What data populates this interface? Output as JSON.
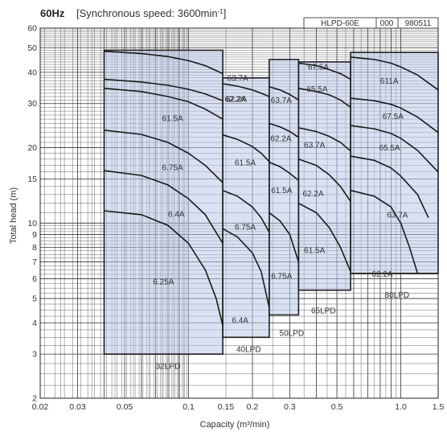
{
  "header": {
    "freq": "60Hz",
    "speed_text": "[Synchronous speed: 3600min",
    "speed_exp": "-1",
    "speed_close": "]"
  },
  "model_box": {
    "model": "HLPD-60E",
    "code1": "000",
    "code2": "980511"
  },
  "chart_data": {
    "type": "line",
    "xlabel": "Capacity (m³/min)",
    "ylabel": "Total head  (m)",
    "xscale": "log",
    "yscale": "log",
    "xlim": [
      0.02,
      1.5
    ],
    "ylim": [
      2,
      60
    ],
    "grid": true,
    "xticks": [
      {
        "v": 0.02,
        "t": "0.02"
      },
      {
        "v": 0.03,
        "t": "0.03"
      },
      {
        "v": 0.05,
        "t": "0.05"
      },
      {
        "v": 0.1,
        "t": "0.1"
      },
      {
        "v": 0.15,
        "t": "0.15"
      },
      {
        "v": 0.2,
        "t": "0.2"
      },
      {
        "v": 0.3,
        "t": "0.3"
      },
      {
        "v": 0.5,
        "t": "0.5"
      },
      {
        "v": 1.0,
        "t": "1.0"
      },
      {
        "v": 1.5,
        "t": "1.5"
      }
    ],
    "yticks": [
      {
        "v": 2,
        "t": "2"
      },
      {
        "v": 3,
        "t": "3"
      },
      {
        "v": 4,
        "t": "4"
      },
      {
        "v": 5,
        "t": "5"
      },
      {
        "v": 6,
        "t": "6"
      },
      {
        "v": 7,
        "t": "7"
      },
      {
        "v": 8,
        "t": "8"
      },
      {
        "v": 9,
        "t": "9"
      },
      {
        "v": 10,
        "t": "10"
      },
      {
        "v": 15,
        "t": "15"
      },
      {
        "v": 20,
        "t": "20"
      },
      {
        "v": 30,
        "t": "30"
      },
      {
        "v": 40,
        "t": "40"
      },
      {
        "v": 50,
        "t": "50"
      },
      {
        "v": 60,
        "t": "60"
      }
    ],
    "models": [
      {
        "name": "32LPD",
        "region": [
          [
            0.04,
            3.0
          ],
          [
            0.04,
            49
          ],
          [
            0.145,
            49
          ],
          [
            0.145,
            3.0
          ]
        ],
        "label_at": [
          0.07,
          2.7
        ],
        "curves": [
          {
            "name": "6.25A",
            "points": [
              [
                0.04,
                11.2
              ],
              [
                0.06,
                10.8
              ],
              [
                0.08,
                9.8
              ],
              [
                0.1,
                8.3
              ],
              [
                0.12,
                6.5
              ],
              [
                0.135,
                5.0
              ],
              [
                0.145,
                3.9
              ]
            ],
            "label_at": [
              0.068,
              5.7
            ]
          },
          {
            "name": "6.4A",
            "points": [
              [
                0.04,
                16.2
              ],
              [
                0.06,
                15.5
              ],
              [
                0.08,
                14.2
              ],
              [
                0.1,
                12.5
              ],
              [
                0.12,
                10.8
              ],
              [
                0.145,
                8.3
              ]
            ],
            "label_at": [
              0.08,
              10.6
            ]
          },
          {
            "name": "6.75A",
            "points": [
              [
                0.04,
                23.5
              ],
              [
                0.06,
                22.6
              ],
              [
                0.08,
                21.0
              ],
              [
                0.1,
                19.0
              ],
              [
                0.12,
                17.0
              ],
              [
                0.145,
                14.5
              ]
            ],
            "label_at": [
              0.075,
              16.3
            ]
          },
          {
            "name": "61.5A",
            "points": [
              [
                0.04,
                34.5
              ],
              [
                0.06,
                33.5
              ],
              [
                0.08,
                32.0
              ],
              [
                0.1,
                30.5
              ],
              [
                0.12,
                28.5
              ],
              [
                0.145,
                26.0
              ]
            ],
            "label_at": [
              0.075,
              25.5
            ]
          },
          {
            "name": "62.2A",
            "points": [
              [
                0.04,
                37.5
              ],
              [
                0.06,
                36.6
              ],
              [
                0.08,
                35.5
              ],
              [
                0.1,
                34.2
              ],
              [
                0.12,
                32.8
              ],
              [
                0.145,
                30.8
              ]
            ],
            "label_at": [
              0.148,
              30.5
            ]
          },
          {
            "name": "63.7A",
            "points": [
              [
                0.04,
                48.5
              ],
              [
                0.06,
                47.5
              ],
              [
                0.08,
                46.2
              ],
              [
                0.1,
                44.5
              ],
              [
                0.12,
                42.5
              ],
              [
                0.145,
                39.5
              ]
            ],
            "label_at": [
              0.152,
              37.0
            ]
          }
        ]
      },
      {
        "name": "40LPD",
        "region": [
          [
            0.145,
            3.5
          ],
          [
            0.145,
            38
          ],
          [
            0.24,
            38
          ],
          [
            0.24,
            3.5
          ]
        ],
        "label_at": [
          0.168,
          3.15
        ],
        "curves": [
          {
            "name": "6.4A",
            "points": [
              [
                0.145,
                9.5
              ],
              [
                0.17,
                8.8
              ],
              [
                0.2,
                7.6
              ],
              [
                0.22,
                6.4
              ],
              [
                0.24,
                4.6
              ]
            ],
            "label_at": [
              0.16,
              4.0
            ]
          },
          {
            "name": "6.75A",
            "points": [
              [
                0.145,
                13.5
              ],
              [
                0.17,
                12.8
              ],
              [
                0.2,
                11.6
              ],
              [
                0.22,
                10.5
              ],
              [
                0.24,
                9.2
              ]
            ],
            "label_at": [
              0.165,
              9.4
            ]
          },
          {
            "name": "61.5A",
            "points": [
              [
                0.145,
                22.5
              ],
              [
                0.17,
                21.6
              ],
              [
                0.2,
                20.2
              ],
              [
                0.22,
                19.0
              ],
              [
                0.24,
                17.6
              ]
            ],
            "label_at": [
              0.165,
              17.0
            ]
          },
          {
            "name": "62.2A",
            "points": [
              [
                0.145,
                36.0
              ],
              [
                0.17,
                35.2
              ],
              [
                0.2,
                34.0
              ],
              [
                0.22,
                33.0
              ],
              [
                0.24,
                32.0
              ]
            ],
            "label_at": [
              0.15,
              30.5
            ]
          }
        ]
      },
      {
        "name": "50LPD",
        "region": [
          [
            0.24,
            4.3
          ],
          [
            0.24,
            45
          ],
          [
            0.33,
            45
          ],
          [
            0.33,
            4.3
          ]
        ],
        "label_at": [
          0.268,
          3.65
        ],
        "curves": [
          {
            "name": "6.75A",
            "points": [
              [
                0.24,
                11.0
              ],
              [
                0.27,
                10.2
              ],
              [
                0.3,
                9.0
              ],
              [
                0.33,
                7.0
              ]
            ],
            "label_at": [
              0.245,
              6.0
            ]
          },
          {
            "name": "61.5A",
            "points": [
              [
                0.24,
                17.5
              ],
              [
                0.27,
                16.8
              ],
              [
                0.3,
                15.8
              ],
              [
                0.33,
                14.8
              ]
            ],
            "label_at": [
              0.245,
              13.2
            ]
          },
          {
            "name": "62.2A",
            "points": [
              [
                0.24,
                25.0
              ],
              [
                0.27,
                24.2
              ],
              [
                0.3,
                23.2
              ],
              [
                0.33,
                22.0
              ]
            ],
            "label_at": [
              0.243,
              21.2
            ]
          },
          {
            "name": "63.7A",
            "points": [
              [
                0.24,
                35.0
              ],
              [
                0.27,
                34.0
              ],
              [
                0.3,
                32.6
              ],
              [
                0.33,
                31.0
              ]
            ],
            "label_at": [
              0.244,
              30.2
            ]
          }
        ]
      },
      {
        "name": "65LPD",
        "region": [
          [
            0.33,
            5.4
          ],
          [
            0.33,
            44
          ],
          [
            0.58,
            44
          ],
          [
            0.58,
            5.4
          ]
        ],
        "label_at": [
          0.378,
          4.5
        ],
        "curves": [
          {
            "name": "61.5A",
            "points": [
              [
                0.33,
                12.0
              ],
              [
                0.4,
                11.0
              ],
              [
                0.46,
                9.6
              ],
              [
                0.52,
                8.0
              ],
              [
                0.58,
                6.4
              ]
            ],
            "label_at": [
              0.35,
              7.6
            ]
          },
          {
            "name": "62.2A",
            "points": [
              [
                0.33,
                18.0
              ],
              [
                0.4,
                17.0
              ],
              [
                0.46,
                15.6
              ],
              [
                0.52,
                14.0
              ],
              [
                0.58,
                12.2
              ]
            ],
            "label_at": [
              0.345,
              12.8
            ]
          },
          {
            "name": "63.7A",
            "points": [
              [
                0.33,
                24.0
              ],
              [
                0.4,
                23.2
              ],
              [
                0.46,
                22.2
              ],
              [
                0.52,
                21.0
              ],
              [
                0.58,
                19.4
              ]
            ],
            "label_at": [
              0.35,
              20.0
            ]
          },
          {
            "name": "65.5A",
            "points": [
              [
                0.33,
                34.5
              ],
              [
                0.4,
                33.5
              ],
              [
                0.46,
                32.5
              ],
              [
                0.52,
                31.0
              ],
              [
                0.58,
                29.0
              ]
            ],
            "label_at": [
              0.36,
              33.5
            ]
          },
          {
            "name": "67.5A",
            "points": [
              [
                0.33,
                43.5
              ],
              [
                0.4,
                42.5
              ],
              [
                0.46,
                41.0
              ],
              [
                0.52,
                39.5
              ],
              [
                0.58,
                37.5
              ]
            ],
            "label_at": [
              0.365,
              41.0
            ]
          }
        ]
      },
      {
        "name": "80LPD",
        "region": [
          [
            0.58,
            6.3
          ],
          [
            0.58,
            48
          ],
          [
            1.5,
            48
          ],
          [
            1.5,
            6.3
          ]
        ],
        "label_at": [
          0.84,
          5.2
        ],
        "curves": [
          {
            "name": "62.2A",
            "points": [
              [
                0.58,
                13.5
              ],
              [
                0.75,
                12.8
              ],
              [
                0.9,
                11.6
              ],
              [
                1.0,
                10.0
              ],
              [
                1.1,
                8.0
              ],
              [
                1.2,
                6.3
              ]
            ],
            "label_at": [
              0.73,
              6.1
            ]
          },
          {
            "name": "63.7A",
            "points": [
              [
                0.58,
                18.5
              ],
              [
                0.75,
                17.8
              ],
              [
                0.9,
                16.6
              ],
              [
                1.0,
                15.4
              ],
              [
                1.2,
                13.0
              ],
              [
                1.35,
                10.5
              ]
            ],
            "label_at": [
              0.86,
              10.5
            ]
          },
          {
            "name": "65.5A",
            "points": [
              [
                0.58,
                24.5
              ],
              [
                0.75,
                23.8
              ],
              [
                0.9,
                22.8
              ],
              [
                1.0,
                21.8
              ],
              [
                1.2,
                19.5
              ],
              [
                1.5,
                16.0
              ]
            ],
            "label_at": [
              0.79,
              19.5
            ]
          },
          {
            "name": "67.5A",
            "points": [
              [
                0.58,
                31.5
              ],
              [
                0.75,
                30.8
              ],
              [
                0.9,
                29.8
              ],
              [
                1.0,
                28.8
              ],
              [
                1.2,
                26.5
              ],
              [
                1.5,
                23.0
              ]
            ],
            "label_at": [
              0.82,
              26.0
            ]
          },
          {
            "name": "611A",
            "points": [
              [
                0.58,
                46.0
              ],
              [
                0.75,
                45.0
              ],
              [
                0.9,
                43.5
              ],
              [
                1.0,
                42.0
              ],
              [
                1.2,
                39.0
              ],
              [
                1.5,
                34.0
              ]
            ],
            "label_at": [
              0.8,
              36.0
            ]
          }
        ]
      }
    ]
  }
}
